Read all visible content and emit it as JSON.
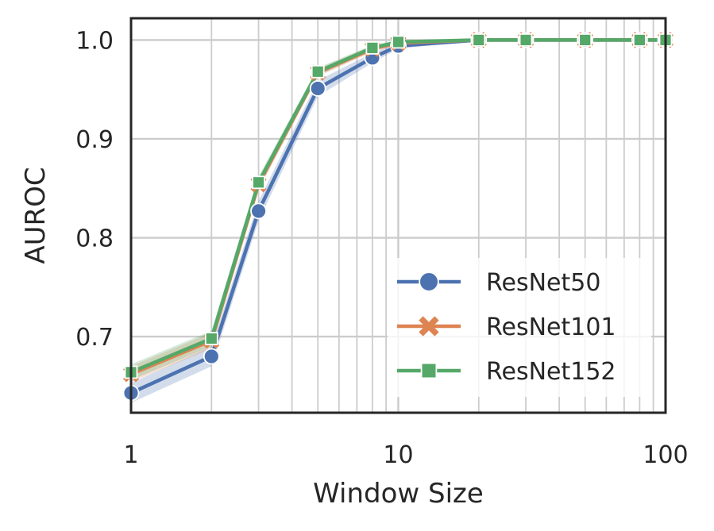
{
  "chart_data": {
    "type": "line",
    "xscale": "log",
    "xlabel": "Window Size",
    "ylabel": "AUROC",
    "xlim": [
      1,
      100
    ],
    "ylim": [
      0.623,
      1.022
    ],
    "x_ticks": [
      1,
      10,
      100
    ],
    "x_tick_labels": [
      "1",
      "10",
      "100"
    ],
    "y_ticks": [
      0.7,
      0.8,
      0.9,
      1.0
    ],
    "y_tick_labels": [
      "0.7",
      "0.8",
      "0.9",
      "1.0"
    ],
    "grid": true,
    "legend_position": "lower-right",
    "x": [
      1,
      2,
      3,
      5,
      8,
      10,
      20,
      30,
      50,
      80,
      100
    ],
    "series": [
      {
        "name": "ResNet50",
        "color": "#4c72b0",
        "marker": "circle",
        "values": [
          0.643,
          0.68,
          0.827,
          0.951,
          0.982,
          0.994,
          1.0,
          1.0,
          1.0,
          1.0,
          1.0
        ],
        "band": [
          0.01,
          0.01,
          0.01,
          0.008,
          0.005,
          0.003,
          0.0,
          0.0,
          0.0,
          0.0,
          0.0
        ]
      },
      {
        "name": "ResNet101",
        "color": "#dd8452",
        "marker": "x",
        "values": [
          0.662,
          0.696,
          0.854,
          0.967,
          0.991,
          0.997,
          1.0,
          1.0,
          1.0,
          1.0,
          1.0
        ],
        "band": [
          0.008,
          0.008,
          0.006,
          0.004,
          0.003,
          0.002,
          0.0,
          0.0,
          0.0,
          0.0,
          0.0
        ]
      },
      {
        "name": "ResNet152",
        "color": "#55a868",
        "marker": "square",
        "values": [
          0.664,
          0.698,
          0.856,
          0.968,
          0.992,
          0.998,
          1.0,
          1.0,
          1.0,
          1.0,
          1.0
        ],
        "band": [
          0.008,
          0.008,
          0.006,
          0.004,
          0.003,
          0.002,
          0.0,
          0.0,
          0.0,
          0.0,
          0.0
        ]
      }
    ]
  }
}
